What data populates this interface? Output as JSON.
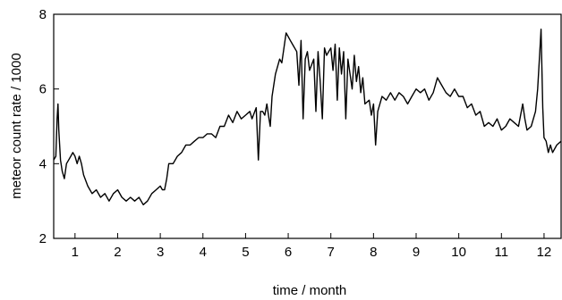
{
  "chart_data": {
    "type": "line",
    "xlabel": "time / month",
    "ylabel": "meteor count rate / 1000",
    "xlim": [
      0.5,
      12.4
    ],
    "ylim": [
      2,
      8
    ],
    "x_ticks": [
      1,
      2,
      3,
      4,
      5,
      6,
      7,
      8,
      9,
      10,
      11,
      12
    ],
    "y_ticks": [
      2,
      4,
      6,
      8
    ],
    "grid": false,
    "series": [
      {
        "color": "#000000",
        "x": [
          0.5,
          0.55,
          0.58,
          0.6,
          0.62,
          0.66,
          0.7,
          0.75,
          0.8,
          0.85,
          0.9,
          0.95,
          1.0,
          1.05,
          1.1,
          1.15,
          1.2,
          1.3,
          1.4,
          1.5,
          1.6,
          1.7,
          1.8,
          1.9,
          2.0,
          2.1,
          2.2,
          2.3,
          2.4,
          2.5,
          2.6,
          2.7,
          2.8,
          2.9,
          3.0,
          3.05,
          3.1,
          3.15,
          3.2,
          3.3,
          3.4,
          3.5,
          3.6,
          3.7,
          3.8,
          3.9,
          4.0,
          4.1,
          4.2,
          4.3,
          4.4,
          4.5,
          4.6,
          4.7,
          4.8,
          4.9,
          5.0,
          5.1,
          5.15,
          5.25,
          5.3,
          5.35,
          5.4,
          5.45,
          5.5,
          5.55,
          5.58,
          5.62,
          5.7,
          5.8,
          5.85,
          5.9,
          5.95,
          6.0,
          6.05,
          6.1,
          6.2,
          6.25,
          6.3,
          6.35,
          6.4,
          6.45,
          6.5,
          6.6,
          6.65,
          6.7,
          6.75,
          6.8,
          6.85,
          6.9,
          7.0,
          7.05,
          7.1,
          7.15,
          7.2,
          7.25,
          7.3,
          7.35,
          7.4,
          7.5,
          7.55,
          7.6,
          7.65,
          7.7,
          7.75,
          7.8,
          7.9,
          7.95,
          8.0,
          8.05,
          8.1,
          8.2,
          8.3,
          8.4,
          8.5,
          8.6,
          8.7,
          8.8,
          8.9,
          9.0,
          9.1,
          9.2,
          9.3,
          9.4,
          9.5,
          9.6,
          9.7,
          9.8,
          9.9,
          10.0,
          10.1,
          10.2,
          10.3,
          10.4,
          10.5,
          10.6,
          10.7,
          10.8,
          10.9,
          11.0,
          11.1,
          11.2,
          11.3,
          11.4,
          11.5,
          11.55,
          11.6,
          11.7,
          11.8,
          11.85,
          11.9,
          11.93,
          11.97,
          12.0,
          12.05,
          12.1,
          12.15,
          12.2,
          12.3,
          12.4
        ],
        "y": [
          4.1,
          4.2,
          5.2,
          5.6,
          4.9,
          4.1,
          3.8,
          3.6,
          4.0,
          4.1,
          4.2,
          4.3,
          4.2,
          4.0,
          4.2,
          4.0,
          3.7,
          3.4,
          3.2,
          3.3,
          3.1,
          3.2,
          3.0,
          3.2,
          3.3,
          3.1,
          3.0,
          3.1,
          3.0,
          3.1,
          2.9,
          3.0,
          3.2,
          3.3,
          3.4,
          3.3,
          3.3,
          3.6,
          4.0,
          4.0,
          4.2,
          4.3,
          4.5,
          4.5,
          4.6,
          4.7,
          4.7,
          4.8,
          4.8,
          4.7,
          5.0,
          5.0,
          5.3,
          5.1,
          5.4,
          5.2,
          5.3,
          5.4,
          5.2,
          5.5,
          4.1,
          5.4,
          5.4,
          5.3,
          5.6,
          5.2,
          5.0,
          5.8,
          6.4,
          6.8,
          6.7,
          7.1,
          7.5,
          7.4,
          7.3,
          7.2,
          7.0,
          6.1,
          7.3,
          5.2,
          6.8,
          7.0,
          6.5,
          6.8,
          5.4,
          7.0,
          6.2,
          5.2,
          7.1,
          6.9,
          7.1,
          6.5,
          7.2,
          5.7,
          7.1,
          6.4,
          7.0,
          5.2,
          6.8,
          6.0,
          6.9,
          6.2,
          6.6,
          5.9,
          6.3,
          5.6,
          5.7,
          5.3,
          5.6,
          4.5,
          5.4,
          5.8,
          5.7,
          5.9,
          5.7,
          5.9,
          5.8,
          5.6,
          5.8,
          6.0,
          5.9,
          6.0,
          5.7,
          5.9,
          6.3,
          6.1,
          5.9,
          5.8,
          6.0,
          5.8,
          5.8,
          5.5,
          5.6,
          5.3,
          5.4,
          5.0,
          5.1,
          5.0,
          5.2,
          4.9,
          5.0,
          5.2,
          5.1,
          5.0,
          5.6,
          5.2,
          4.9,
          5.0,
          5.4,
          6.0,
          7.0,
          7.6,
          5.5,
          4.7,
          4.6,
          4.3,
          4.5,
          4.3,
          4.5,
          4.6
        ]
      }
    ]
  }
}
